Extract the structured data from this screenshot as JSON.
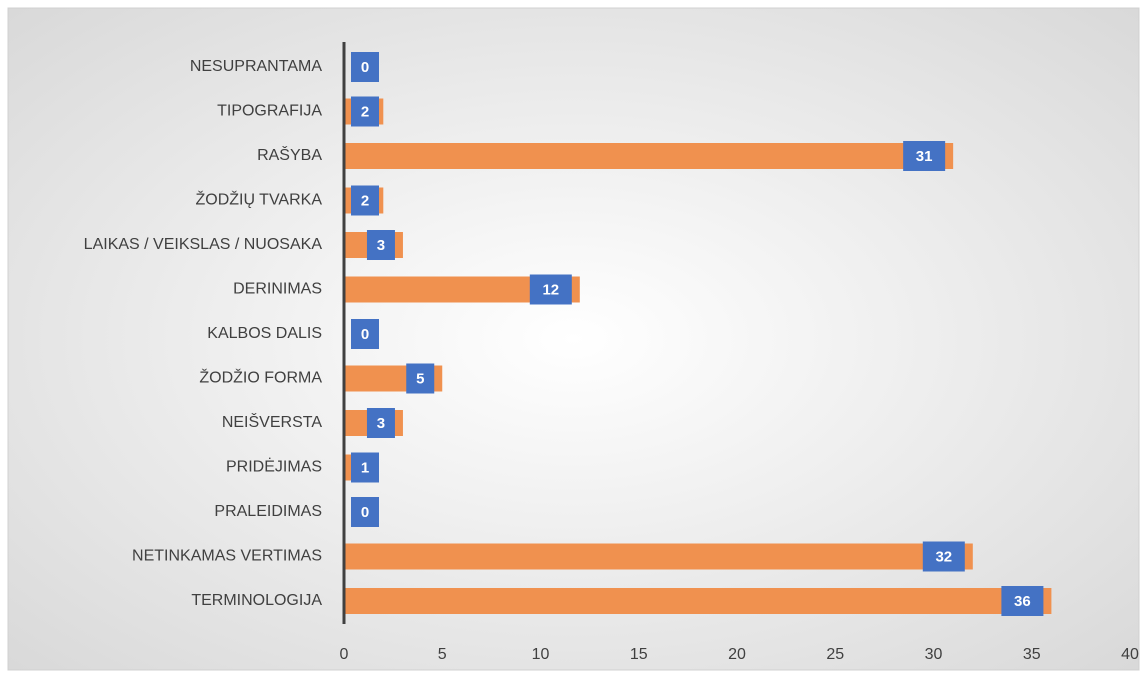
{
  "chart_data": {
    "type": "bar",
    "orientation": "horizontal",
    "categories": [
      "NESUPRANTAMA",
      "TIPOGRAFIJA",
      "RAŠYBA",
      "ŽODŽIŲ TVARKA",
      "LAIKAS / VEIKSLAS / NUOSAKA",
      "DERINIMAS",
      "KALBOS DALIS",
      "ŽODŽIO FORMA",
      "NEIŠVERSTA",
      "PRIDĖJIMAS",
      "PRALEIDIMAS",
      "NETINKAMAS VERTIMAS",
      "TERMINOLOGIJA"
    ],
    "values": [
      0,
      2,
      31,
      2,
      3,
      12,
      0,
      5,
      3,
      1,
      0,
      32,
      36
    ],
    "color": "#f0914f",
    "label_color": "#4472c4",
    "xlim": [
      0,
      40
    ],
    "xticks": [
      0,
      5,
      10,
      15,
      20,
      25,
      30,
      35,
      40
    ]
  }
}
